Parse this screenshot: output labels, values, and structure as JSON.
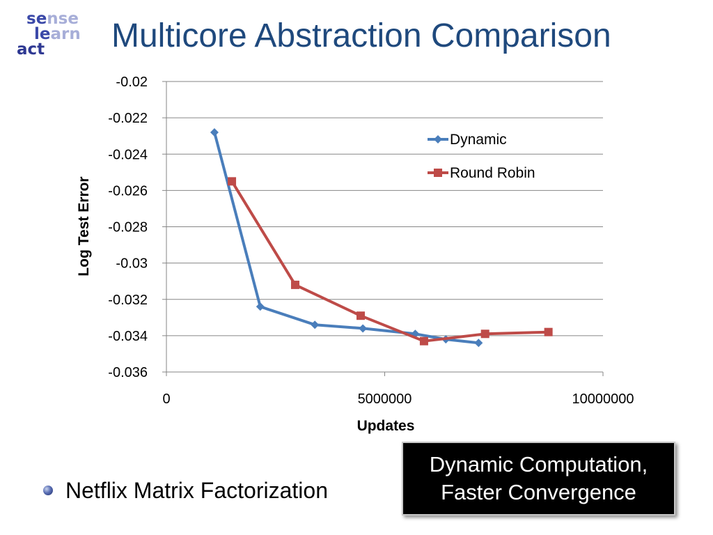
{
  "logo": {
    "line1_a": "se",
    "line1_b": "nse",
    "line2_a": "le",
    "line2_b": "arn",
    "line3_a": "act"
  },
  "title": "Multicore Abstraction Comparison",
  "bullet": {
    "text": "Netflix Matrix Factorization"
  },
  "callout": {
    "line1": "Dynamic Computation,",
    "line2": "Faster Convergence"
  },
  "chart_data": {
    "type": "line",
    "title": "",
    "xlabel": "Updates",
    "ylabel": "Log Test Error",
    "xlim": [
      0,
      10000000
    ],
    "ylim": [
      -0.036,
      -0.02
    ],
    "x_ticks": [
      0,
      5000000,
      10000000
    ],
    "x_tick_labels": [
      "0",
      "5000000",
      "10000000"
    ],
    "y_ticks": [
      -0.02,
      -0.022,
      -0.024,
      -0.026,
      -0.028,
      -0.03,
      -0.032,
      -0.034,
      -0.036
    ],
    "y_tick_labels": [
      "-0.02",
      "-0.022",
      "-0.024",
      "-0.026",
      "-0.028",
      "-0.03",
      "-0.032",
      "-0.034",
      "-0.036"
    ],
    "grid": true,
    "legend": "top-right",
    "series": [
      {
        "name": "Dynamic",
        "color": "#4a7ebb",
        "marker": "diamond",
        "points": [
          [
            1100000,
            -0.0228
          ],
          [
            2150000,
            -0.0324
          ],
          [
            3400000,
            -0.0334
          ],
          [
            4500000,
            -0.0336
          ],
          [
            5700000,
            -0.0339
          ],
          [
            6400000,
            -0.0342
          ],
          [
            7150000,
            -0.0344
          ]
        ]
      },
      {
        "name": "Round Robin",
        "color": "#be4b48",
        "marker": "square",
        "points": [
          [
            1500000,
            -0.0255
          ],
          [
            2950000,
            -0.0312
          ],
          [
            4450000,
            -0.0329
          ],
          [
            5900000,
            -0.0343
          ],
          [
            7300000,
            -0.0339
          ],
          [
            8750000,
            -0.0338
          ]
        ]
      }
    ]
  }
}
